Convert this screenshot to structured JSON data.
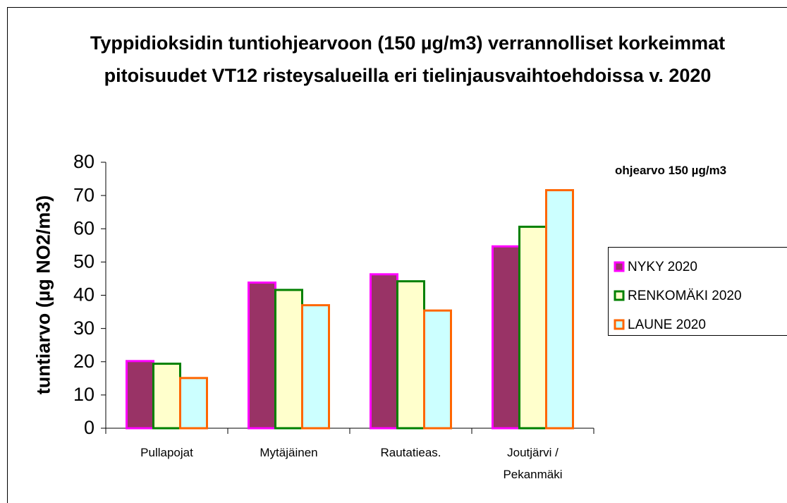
{
  "chart_data": {
    "type": "bar",
    "title": "Typpidioksidin tuntiohjearvoon (150 µg/m3) verrannolliset korkeimmat pitoisuudet VT12  risteysalueilla eri tielinjausvaihtoehdoissa v. 2020",
    "y_label": "tuntiarvo (µg NO2/m3)",
    "annotation": "ohjearvo 150 µg/m3",
    "categories": [
      "Pullapojat",
      "Mytäjäinen",
      "Rautatieas.",
      "Joutjärvi / Pekanmäki"
    ],
    "series": [
      {
        "name": "NYKY 2020",
        "color": "#993366",
        "border": "#ff00ff",
        "values": [
          20.2,
          43.8,
          46.3,
          54.7
        ]
      },
      {
        "name": "RENKOMÄKI 2020",
        "color": "#ffffcc",
        "border": "#008000",
        "values": [
          19.4,
          41.6,
          44.2,
          60.6
        ]
      },
      {
        "name": "LAUNE 2020",
        "color": "#ccffff",
        "border": "#ff6600",
        "values": [
          15.1,
          37.0,
          35.4,
          71.6
        ]
      }
    ],
    "ylim": [
      0,
      80
    ],
    "yticks": [
      0,
      10,
      20,
      30,
      40,
      50,
      60,
      70,
      80
    ],
    "grid": false,
    "legend": "right"
  }
}
